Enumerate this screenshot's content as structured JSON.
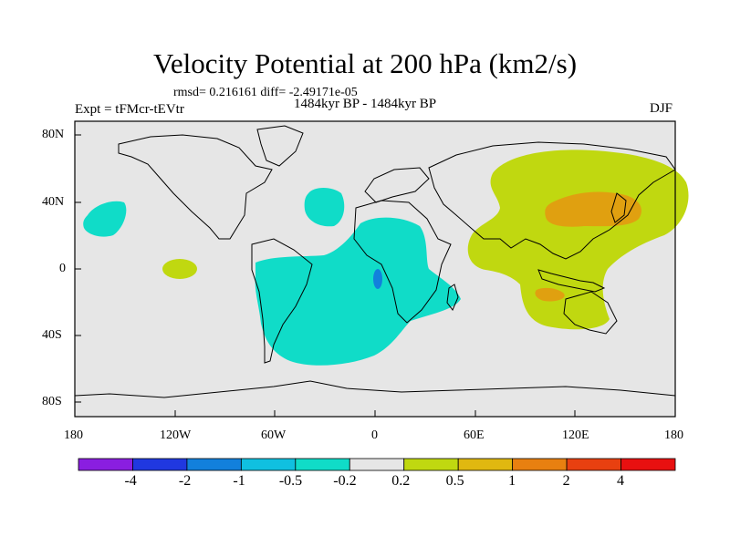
{
  "title": "Velocity Potential at 200 hPa (km2/s)",
  "stats": "rmsd= 0.216161  diff= -2.49171e-05",
  "period": "1484kyr BP - 1484kyr BP",
  "experiment": "Expt = tFMcr-tEVtr",
  "season": "DJF",
  "axes": {
    "y_ticks": [
      "80N",
      "40N",
      "0",
      "40S",
      "80S"
    ],
    "x_ticks": [
      "180",
      "120W",
      "60W",
      "0",
      "60E",
      "120E",
      "180"
    ]
  },
  "colorbar": {
    "colors": [
      "#8a1ee0",
      "#2038e0",
      "#1280dc",
      "#10c0e0",
      "#10dcc8",
      "#e6e6e6",
      "#c0d810",
      "#e0b810",
      "#e88010",
      "#e84010",
      "#e81010"
    ],
    "labels": [
      "-4",
      "-2",
      "-1",
      "-0.5",
      "-0.2",
      "0.2",
      "0.5",
      "1",
      "2",
      "4"
    ]
  },
  "field_colors": {
    "background": "#e6e6e6",
    "negative_weak": "#10dcc8",
    "negative_moderate": "#1280dc",
    "positive_weak": "#c0d810",
    "positive_moderate": "#e0a010"
  }
}
